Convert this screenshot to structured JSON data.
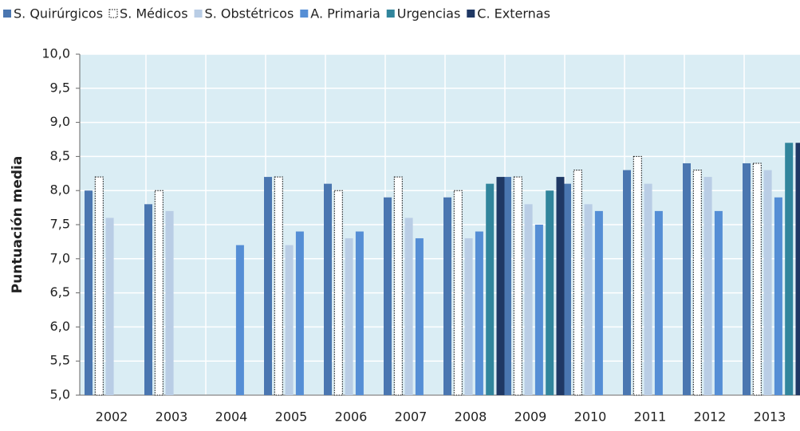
{
  "chart_data": {
    "type": "bar",
    "y_label": "Puntuación media",
    "categories": [
      "2002",
      "2003",
      "2004",
      "2005",
      "2006",
      "2007",
      "2008",
      "2009",
      "2010",
      "2011",
      "2012",
      "2013"
    ],
    "series": [
      {
        "name": "S. Quirúrgicos",
        "color": "#4a76b0",
        "values": [
          8.0,
          7.8,
          null,
          8.2,
          8.1,
          7.9,
          7.9,
          8.2,
          8.1,
          8.3,
          8.4,
          8.4
        ]
      },
      {
        "name": "S. Médicos",
        "color": "#ffffff",
        "values": [
          8.2,
          8.0,
          null,
          8.2,
          8.0,
          8.2,
          8.0,
          8.2,
          8.3,
          8.5,
          8.3,
          8.4
        ]
      },
      {
        "name": "S. Obstétricos",
        "color": "#b9cde5",
        "values": [
          7.6,
          7.7,
          null,
          7.2,
          7.3,
          7.6,
          7.3,
          7.8,
          7.8,
          8.1,
          8.2,
          8.3
        ]
      },
      {
        "name": "A. Primaria",
        "color": "#558ed5",
        "values": [
          null,
          null,
          7.2,
          7.4,
          7.4,
          7.3,
          7.4,
          7.5,
          7.7,
          7.7,
          7.7,
          7.9
        ]
      },
      {
        "name": "Urgencias",
        "color": "#31859c",
        "values": [
          null,
          null,
          null,
          null,
          null,
          null,
          8.1,
          8.0,
          null,
          null,
          null,
          8.7
        ]
      },
      {
        "name": "C. Externas",
        "color": "#1f3864",
        "values": [
          null,
          null,
          null,
          null,
          null,
          null,
          8.2,
          8.2,
          null,
          null,
          null,
          8.7
        ]
      }
    ],
    "ylim": [
      5,
      10
    ],
    "yticks": [
      {
        "value": 5,
        "label": "5,0"
      },
      {
        "value": 5.5,
        "label": "5,5"
      },
      {
        "value": 6,
        "label": "6,0"
      },
      {
        "value": 6.5,
        "label": "6,5"
      },
      {
        "value": 7,
        "label": "7,0"
      },
      {
        "value": 7.5,
        "label": "7,5"
      },
      {
        "value": 8,
        "label": "8,0"
      },
      {
        "value": 8.5,
        "label": "8,5"
      },
      {
        "value": 9,
        "label": "9,0"
      },
      {
        "value": 9.5,
        "label": "9,5"
      },
      {
        "value": 10,
        "label": "10,0"
      }
    ],
    "grid": true,
    "legend": "top"
  }
}
